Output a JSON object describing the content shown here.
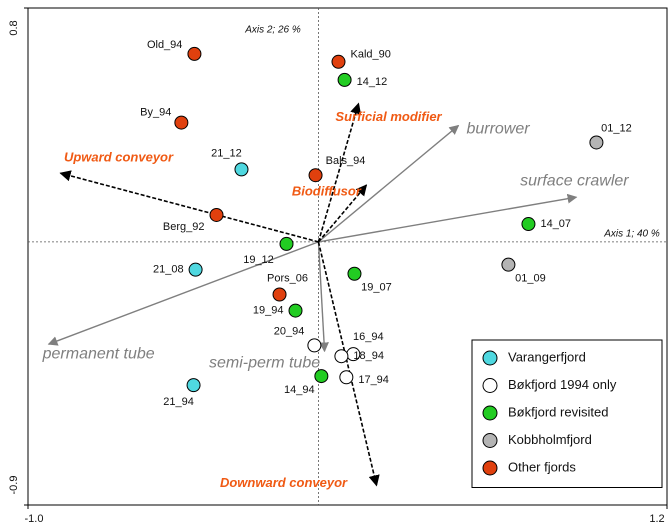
{
  "chart_data": {
    "type": "scatter",
    "x_axis_title": "Axis 1; 40 %",
    "y_axis_title": "Axis 2; 26 %",
    "xlim": [
      -1.0,
      1.2
    ],
    "ylim": [
      -0.9,
      0.8
    ],
    "xticks": [
      {
        "value": -1.0,
        "label": "-1.0"
      },
      {
        "value": 1.2,
        "label": "1.2"
      }
    ],
    "yticks": [
      {
        "value": 0.8,
        "label": "0.8"
      },
      {
        "value": -0.9,
        "label": "-0.9"
      }
    ],
    "legend": "bottom-right",
    "series": [
      {
        "name": "Varangerfjord",
        "color": "#4fd8e0",
        "labels": [
          "21_12",
          "21_08",
          "21_94"
        ],
        "x": [
          -0.265,
          -0.423,
          -0.43
        ],
        "values": [
          0.248,
          -0.095,
          -0.49
        ]
      },
      {
        "name": "Bøkfjord 1994 only",
        "color": "#ffffff",
        "labels": [
          "20_94",
          "16_94",
          "18_94",
          "17_94"
        ],
        "x": [
          -0.014,
          0.12,
          0.079,
          0.096
        ],
        "values": [
          -0.354,
          -0.384,
          -0.391,
          -0.463
        ]
      },
      {
        "name": "Bøkfjord revisited",
        "color": "#22cc22",
        "labels": [
          "14_12",
          "14_07",
          "19_12",
          "19_07",
          "19_94",
          "14_94"
        ],
        "x": [
          0.09,
          0.723,
          -0.11,
          0.124,
          -0.079,
          0.01
        ],
        "values": [
          0.554,
          0.061,
          -0.007,
          -0.109,
          -0.235,
          -0.459
        ]
      },
      {
        "name": "Kobbholmfjord",
        "color": "#b4b4b4",
        "labels": [
          "01_12",
          "01_09"
        ],
        "x": [
          0.957,
          0.654
        ],
        "values": [
          0.34,
          -0.078
        ]
      },
      {
        "name": "Other fjords",
        "color": "#e0400e",
        "labels": [
          "Old_94",
          "Kald_90",
          "By_94",
          "Bals_94",
          "Berg_92",
          "Pors_06"
        ],
        "x": [
          -0.427,
          0.069,
          -0.472,
          -0.01,
          -0.351,
          -0.134
        ],
        "values": [
          0.643,
          0.616,
          0.408,
          0.228,
          0.092,
          -0.18
        ]
      }
    ],
    "vectors": [
      {
        "name": "burrower",
        "style": "solid",
        "color": "#7f7f7f",
        "x": 0.482,
        "y": 0.398
      },
      {
        "name": "surface crawler",
        "style": "solid",
        "color": "#7f7f7f",
        "x": 0.888,
        "y": 0.153
      },
      {
        "name": "permanent tube",
        "style": "solid",
        "color": "#7f7f7f",
        "x": -0.929,
        "y": -0.35
      },
      {
        "name": "semi-perm tube",
        "style": "solid",
        "color": "#7f7f7f",
        "x": 0.021,
        "y": -0.374
      },
      {
        "name": "Upward conveyor",
        "style": "dashed",
        "color": "#000000",
        "x": -0.888,
        "y": 0.235
      },
      {
        "name": "Surficial modifier",
        "style": "dashed",
        "color": "#000000",
        "x": 0.138,
        "y": 0.473
      },
      {
        "name": "Biodiffusor",
        "style": "dashed",
        "color": "#000000",
        "x": 0.165,
        "y": 0.194
      },
      {
        "name": "Downward conveyor",
        "style": "dashed",
        "color": "#000000",
        "x": 0.2,
        "y": -0.833
      }
    ]
  }
}
